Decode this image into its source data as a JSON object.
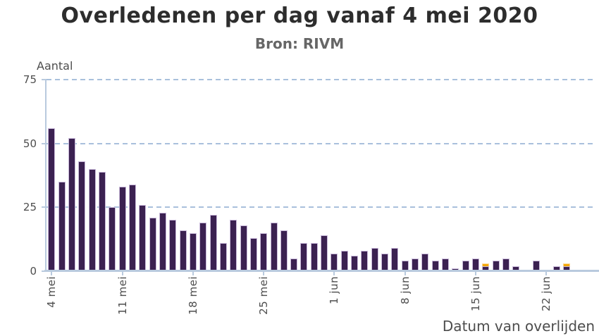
{
  "title": "Overledenen per dag vanaf 4 mei 2020",
  "subtitle": "Bron: RIVM",
  "chart_data": {
    "type": "bar",
    "stacked": true,
    "title": "Overledenen per dag vanaf 4 mei 2020",
    "subtitle": "Bron: RIVM",
    "ylabel": "Aantal",
    "xlabel": "Datum van overlijden",
    "ylim": [
      0,
      75
    ],
    "yticks": [
      0,
      25,
      50,
      75
    ],
    "grid": "horizontal-dashed",
    "legend": "none",
    "categories": [
      "4 mei",
      "5 mei",
      "6 mei",
      "7 mei",
      "8 mei",
      "9 mei",
      "10 mei",
      "11 mei",
      "12 mei",
      "13 mei",
      "14 mei",
      "15 mei",
      "16 mei",
      "17 mei",
      "18 mei",
      "19 mei",
      "20 mei",
      "21 mei",
      "22 mei",
      "23 mei",
      "24 mei",
      "25 mei",
      "26 mei",
      "27 mei",
      "28 mei",
      "29 mei",
      "30 mei",
      "31 mei",
      "1 jun",
      "2 jun",
      "3 jun",
      "4 jun",
      "5 jun",
      "6 jun",
      "7 jun",
      "8 jun",
      "9 jun",
      "10 jun",
      "11 jun",
      "12 jun",
      "13 jun",
      "14 jun",
      "15 jun",
      "16 jun",
      "17 jun",
      "18 jun",
      "19 jun",
      "20 jun",
      "21 jun",
      "22 jun",
      "23 jun",
      "24 jun"
    ],
    "xtick_indices": [
      0,
      7,
      14,
      21,
      28,
      35,
      42,
      49
    ],
    "xtick_labels": [
      "4 mei",
      "11 mei",
      "18 mei",
      "25 mei",
      "1 jun",
      "8 jun",
      "15 jun",
      "22 jun"
    ],
    "series": [
      {
        "name": "primary",
        "color": "#3b2151",
        "values": [
          56,
          35,
          52,
          43,
          40,
          39,
          25,
          33,
          34,
          26,
          21,
          23,
          20,
          16,
          15,
          19,
          22,
          11,
          20,
          18,
          13,
          15,
          19,
          16,
          5,
          11,
          11,
          14,
          7,
          8,
          6,
          8,
          9,
          7,
          9,
          4,
          5,
          7,
          4,
          5,
          1,
          4,
          5,
          2,
          4,
          5,
          2,
          0,
          4,
          0,
          2,
          2
        ]
      },
      {
        "name": "highlight",
        "color": "#f2a707",
        "values": [
          0,
          0,
          0,
          0,
          0,
          0,
          0,
          0,
          0,
          0,
          0,
          0,
          0,
          0,
          0,
          0,
          0,
          0,
          0,
          0,
          0,
          0,
          0,
          0,
          0,
          0,
          0,
          0,
          0,
          0,
          0,
          0,
          0,
          0,
          0,
          0,
          0,
          0,
          0,
          0,
          0,
          0,
          0,
          1,
          0,
          0,
          0,
          0,
          0,
          0,
          0,
          1
        ]
      }
    ],
    "colors": {
      "bar": "#3b2151",
      "bar_border": "#c9b9da",
      "highlight": "#f2a707",
      "highlight_border": "#ffd68c",
      "grid": "#a9c0dc",
      "axis": "#b9cade",
      "title_text": "#2d2d2d",
      "subtitle_text": "#666666",
      "label_text": "#4d4d4d"
    }
  }
}
